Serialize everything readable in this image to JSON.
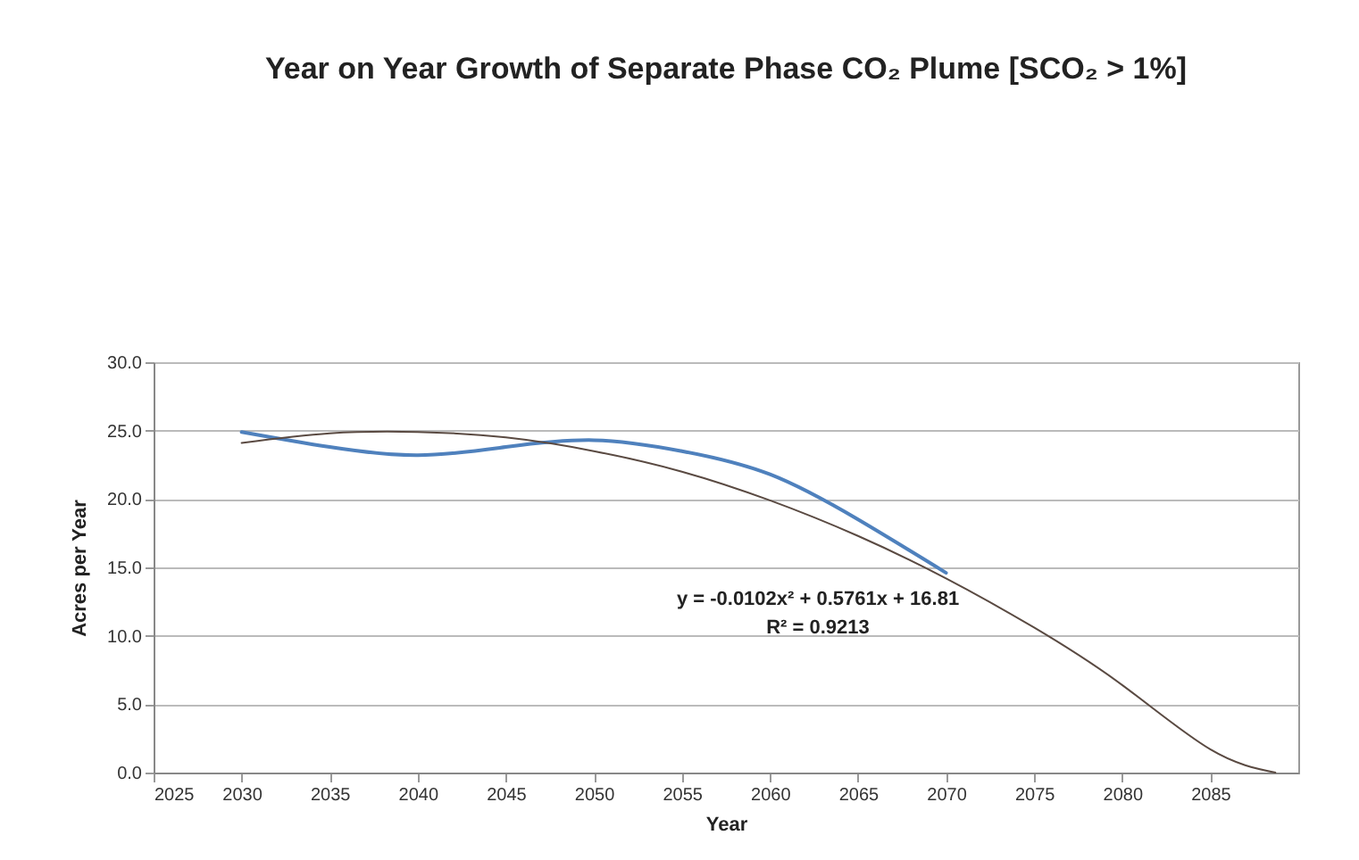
{
  "chart_data": {
    "type": "line",
    "title": "Year on Year Growth of Separate Phase CO₂ Plume [SCO₂ > 1%]",
    "xlabel": "Year",
    "ylabel": "Acres per Year",
    "x": [
      2030,
      2035,
      2040,
      2045,
      2050,
      2055,
      2060,
      2065,
      2070
    ],
    "series": [
      {
        "color": "#4f81bd",
        "values": [
          24.9,
          23.8,
          23.2,
          23.8,
          24.3,
          23.5,
          21.8,
          18.5,
          14.6
        ]
      },
      {
        "type": "line",
        "color": "#5a4a42",
        "x": [
          2030,
          2035,
          2040,
          2045,
          2050,
          2055,
          2060,
          2065,
          2070,
          2075,
          2080,
          2085,
          2088.7
        ],
        "values": [
          24.1,
          24.8,
          24.9,
          24.5,
          23.5,
          22.0,
          19.9,
          17.3,
          14.2,
          10.6,
          6.4,
          1.7,
          0
        ]
      }
    ],
    "xlim": [
      2025,
      2090
    ],
    "xticks": [
      2025,
      2030,
      2035,
      2040,
      2045,
      2050,
      2055,
      2060,
      2065,
      2070,
      2075,
      2080,
      2085
    ],
    "ylim": [
      0,
      30
    ],
    "yticks": [
      {
        "value": 0,
        "label": "0.0"
      },
      {
        "value": 5,
        "label": "5.0"
      },
      {
        "value": 10,
        "label": "10.0"
      },
      {
        "value": 15,
        "label": "15.0"
      },
      {
        "value": 20,
        "label": "20.0"
      },
      {
        "value": 25,
        "label": "25.0"
      },
      {
        "value": 30,
        "label": "30.0"
      }
    ],
    "grid": "y",
    "annotations": [
      "y = -0.0102x² + 0.5761x + 16.81",
      "R² = 0.9213"
    ]
  }
}
